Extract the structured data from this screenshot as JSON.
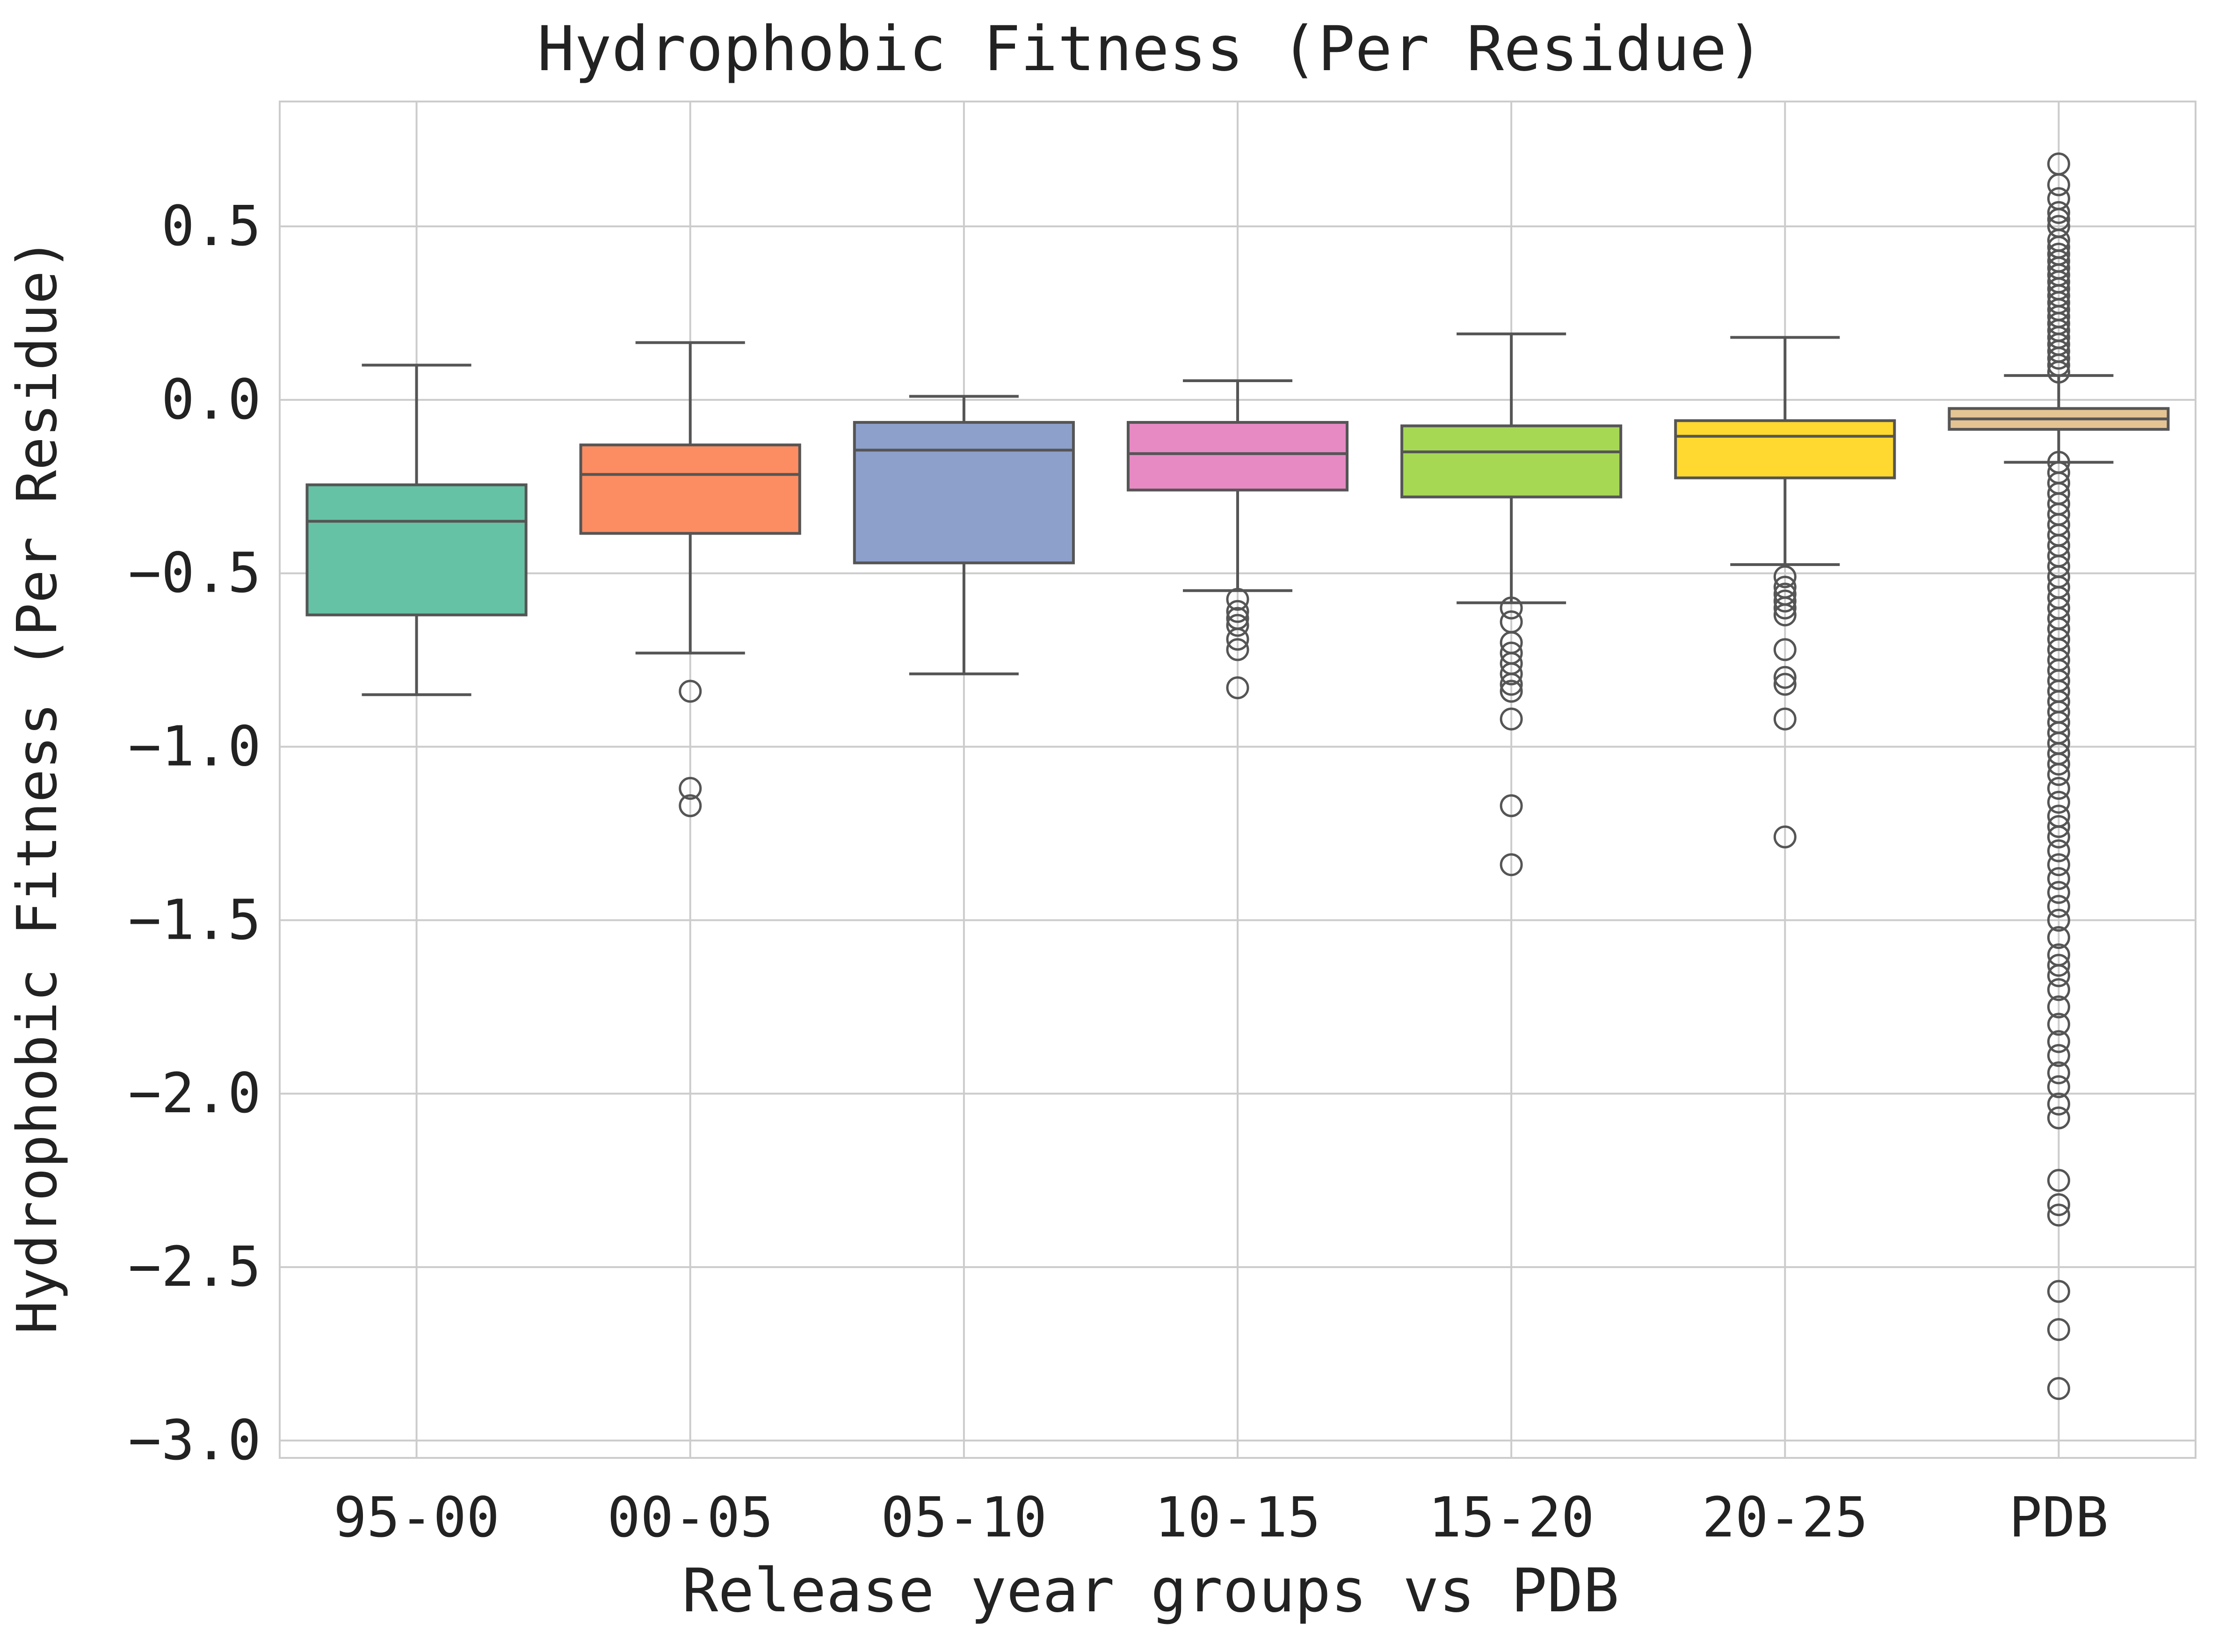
{
  "chart_data": {
    "type": "box",
    "title": "Hydrophobic Fitness (Per Residue)",
    "xlabel": "Release year groups vs PDB",
    "ylabel": "Hydrophobic Fitness (Per Residue)",
    "ylim": [
      -3.05,
      0.86
    ],
    "yticks": [
      -3.0,
      -2.5,
      -2.0,
      -1.5,
      -1.0,
      -0.5,
      0.0,
      0.5
    ],
    "ytick_labels": [
      "−3.0",
      "−2.5",
      "−2.0",
      "−1.5",
      "−1.0",
      "−0.5",
      "0.0",
      "0.5"
    ],
    "grid": true,
    "categories": [
      "95-00",
      "00-05",
      "05-10",
      "10-15",
      "15-20",
      "20-25",
      "PDB"
    ],
    "boxes": [
      {
        "label": "95-00",
        "color": "#66c2a5",
        "whislo": -0.85,
        "q1": -0.62,
        "med": -0.35,
        "q3": -0.245,
        "whishi": 0.1,
        "fliers": []
      },
      {
        "label": "00-05",
        "color": "#fc8d62",
        "whislo": -0.73,
        "q1": -0.385,
        "med": -0.215,
        "q3": -0.13,
        "whishi": 0.165,
        "fliers": [
          -0.84,
          -1.12,
          -1.17
        ]
      },
      {
        "label": "05-10",
        "color": "#8da0cb",
        "whislo": -0.79,
        "q1": -0.47,
        "med": -0.145,
        "q3": -0.065,
        "whishi": 0.01,
        "fliers": []
      },
      {
        "label": "10-15",
        "color": "#e78ac3",
        "whislo": -0.55,
        "q1": -0.26,
        "med": -0.155,
        "q3": -0.065,
        "whishi": 0.055,
        "fliers": [
          -0.575,
          -0.61,
          -0.63,
          -0.65,
          -0.69,
          -0.72,
          -0.83
        ]
      },
      {
        "label": "15-20",
        "color": "#a6d854",
        "whislo": -0.585,
        "q1": -0.28,
        "med": -0.15,
        "q3": -0.075,
        "whishi": 0.19,
        "fliers": [
          -0.6,
          -0.64,
          -0.7,
          -0.73,
          -0.76,
          -0.79,
          -0.82,
          -0.84,
          -0.92,
          -1.17,
          -1.34
        ]
      },
      {
        "label": "20-25",
        "color": "#ffd92f",
        "whislo": -0.475,
        "q1": -0.225,
        "med": -0.105,
        "q3": -0.06,
        "whishi": 0.18,
        "fliers": [
          -0.51,
          -0.54,
          -0.56,
          -0.58,
          -0.6,
          -0.62,
          -0.72,
          -0.8,
          -0.82,
          -0.92,
          -1.26
        ]
      },
      {
        "label": "PDB",
        "color": "#e5c494",
        "whislo": -0.18,
        "q1": -0.085,
        "med": -0.055,
        "q3": -0.025,
        "whishi": 0.07,
        "fliers": [
          0.68,
          0.62,
          0.58,
          0.54,
          0.52,
          0.5,
          0.46,
          0.44,
          0.42,
          0.4,
          0.38,
          0.36,
          0.34,
          0.32,
          0.3,
          0.28,
          0.26,
          0.24,
          0.22,
          0.2,
          0.18,
          0.16,
          0.14,
          0.12,
          0.1,
          0.08,
          -0.18,
          -0.21,
          -0.24,
          -0.27,
          -0.3,
          -0.33,
          -0.36,
          -0.39,
          -0.42,
          -0.45,
          -0.48,
          -0.51,
          -0.54,
          -0.57,
          -0.6,
          -0.63,
          -0.66,
          -0.69,
          -0.72,
          -0.75,
          -0.78,
          -0.81,
          -0.84,
          -0.87,
          -0.9,
          -0.93,
          -0.96,
          -0.99,
          -1.02,
          -1.05,
          -1.08,
          -1.12,
          -1.16,
          -1.2,
          -1.23,
          -1.26,
          -1.3,
          -1.34,
          -1.38,
          -1.42,
          -1.46,
          -1.5,
          -1.55,
          -1.6,
          -1.63,
          -1.66,
          -1.7,
          -1.75,
          -1.8,
          -1.85,
          -1.89,
          -1.94,
          -1.98,
          -2.03,
          -2.07,
          -2.25,
          -2.32,
          -2.35,
          -2.57,
          -2.68,
          -2.85
        ]
      }
    ]
  }
}
